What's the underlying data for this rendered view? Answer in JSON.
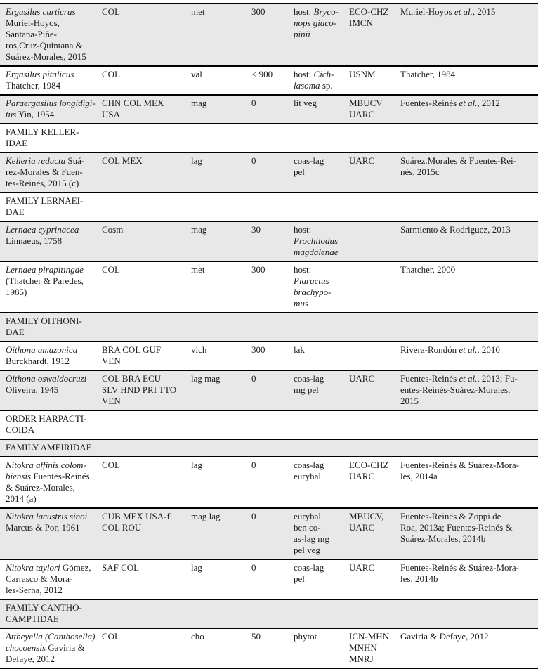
{
  "styles": {
    "shaded_row_bg": "#e8e8e8",
    "rule_color": "#000000",
    "text_color": "#1c1c1c",
    "page_bg": "#ffffff"
  },
  "table": {
    "columns": [
      {
        "key": "species-authority"
      },
      {
        "key": "distribution-countries"
      },
      {
        "key": "habitat-code"
      },
      {
        "key": "altitude"
      },
      {
        "key": "habitat-detail"
      },
      {
        "key": "repository"
      },
      {
        "key": "reference"
      }
    ],
    "rows": [
      {
        "kind": "species",
        "shaded": true,
        "cells": [
          [
            [
              "i",
              "Ergasilus curticrus"
            ],
            [
              "r",
              "\nMuriel-Hoyos,\nSantana-Piñe-\nros,Cruz-Quintana &\nSuárez-Morales, 2015"
            ]
          ],
          [
            [
              "r",
              "COL"
            ]
          ],
          [
            [
              "r",
              "met"
            ]
          ],
          [
            [
              "r",
              "300"
            ]
          ],
          [
            [
              "r",
              "host: "
            ],
            [
              "i",
              "Bryco-\nnops giaco-\npinii"
            ]
          ],
          [
            [
              "r",
              "ECO-CHZ\nIMCN"
            ]
          ],
          [
            [
              "r",
              "Muriel-Hoyos "
            ],
            [
              "i",
              "et al."
            ],
            [
              "r",
              ", 2015"
            ]
          ]
        ]
      },
      {
        "kind": "species",
        "shaded": false,
        "cells": [
          [
            [
              "i",
              "Ergasilus pitalicus"
            ],
            [
              "r",
              "\nThatcher, 1984"
            ]
          ],
          [
            [
              "r",
              "COL"
            ]
          ],
          [
            [
              "r",
              "val"
            ]
          ],
          [
            [
              "r",
              "< 900"
            ]
          ],
          [
            [
              "r",
              "host: "
            ],
            [
              "i",
              "Cich-\nlasoma"
            ],
            [
              "r",
              " sp."
            ]
          ],
          [
            [
              "r",
              "USNM"
            ]
          ],
          [
            [
              "r",
              "Thatcher, 1984"
            ]
          ]
        ]
      },
      {
        "kind": "species",
        "shaded": true,
        "cells": [
          [
            [
              "i",
              "Paraergasilus longidigi-\ntus"
            ],
            [
              "r",
              " Yin, 1954"
            ]
          ],
          [
            [
              "r",
              "CHN COL MEX\nUSA"
            ]
          ],
          [
            [
              "r",
              "mag"
            ]
          ],
          [
            [
              "r",
              "0"
            ]
          ],
          [
            [
              "r",
              "lit veg"
            ]
          ],
          [
            [
              "r",
              "MBUCV\nUARC"
            ]
          ],
          [
            [
              "r",
              "Fuentes-Reinés "
            ],
            [
              "i",
              "et al."
            ],
            [
              "r",
              ", 2012"
            ]
          ]
        ]
      },
      {
        "kind": "section",
        "shaded": false,
        "title": "FAMILY KELLER-\nIDAE"
      },
      {
        "kind": "species",
        "shaded": true,
        "cells": [
          [
            [
              "i",
              "Kelleria reducta"
            ],
            [
              "r",
              " Suá-\nrez-Morales & Fuen-\ntes-Reinés, 2015 (c)"
            ]
          ],
          [
            [
              "r",
              "COL MEX"
            ]
          ],
          [
            [
              "r",
              "lag"
            ]
          ],
          [
            [
              "r",
              "0"
            ]
          ],
          [
            [
              "r",
              "coas-lag\npel"
            ]
          ],
          [
            [
              "r",
              "UARC"
            ]
          ],
          [
            [
              "r",
              "Suárez.Morales & Fuentes-Rei-\nnés, 2015c"
            ]
          ]
        ]
      },
      {
        "kind": "section",
        "shaded": false,
        "title": "FAMILY LERNAEI-\nDAE"
      },
      {
        "kind": "species",
        "shaded": true,
        "cells": [
          [
            [
              "i",
              "Lernaea cyprinacea"
            ],
            [
              "r",
              "\nLinnaeus, 1758"
            ]
          ],
          [
            [
              "r",
              "Cosm"
            ]
          ],
          [
            [
              "r",
              "mag"
            ]
          ],
          [
            [
              "r",
              "30"
            ]
          ],
          [
            [
              "r",
              "host:\n"
            ],
            [
              "i",
              "Prochilodus\nmagdalenae"
            ]
          ],
          [],
          [
            [
              "r",
              "Sarmiento & Rodriguez, 2013"
            ]
          ]
        ]
      },
      {
        "kind": "species",
        "shaded": false,
        "cells": [
          [
            [
              "i",
              "Lernaea pirapitingae"
            ],
            [
              "r",
              "\n(Thatcher & Paredes,\n1985)"
            ]
          ],
          [
            [
              "r",
              "COL"
            ]
          ],
          [
            [
              "r",
              "met"
            ]
          ],
          [
            [
              "r",
              "300"
            ]
          ],
          [
            [
              "r",
              "host:\n"
            ],
            [
              "i",
              "Piaractus\nbrachypo-\nmus"
            ]
          ],
          [],
          [
            [
              "r",
              "Thatcher, 2000"
            ]
          ]
        ]
      },
      {
        "kind": "section",
        "shaded": true,
        "title": "FAMILY OITHONI-\nDAE"
      },
      {
        "kind": "species",
        "shaded": false,
        "cells": [
          [
            [
              "i",
              "Oithona amazonica"
            ],
            [
              "r",
              "\nBurckhardt, 1912"
            ]
          ],
          [
            [
              "r",
              "BRA COL GUF\nVEN"
            ]
          ],
          [
            [
              "r",
              "vich"
            ]
          ],
          [
            [
              "r",
              "300"
            ]
          ],
          [
            [
              "r",
              "lak"
            ]
          ],
          [],
          [
            [
              "r",
              "Rivera-Rondón "
            ],
            [
              "i",
              "et al."
            ],
            [
              "r",
              ", 2010"
            ]
          ]
        ]
      },
      {
        "kind": "species",
        "shaded": true,
        "cells": [
          [
            [
              "i",
              "Oithona oswaldocruzi"
            ],
            [
              "r",
              "\nOliveira, 1945"
            ]
          ],
          [
            [
              "r",
              "COL BRA ECU\nSLV HND PRI TTO\nVEN"
            ]
          ],
          [
            [
              "r",
              "lag mag"
            ]
          ],
          [
            [
              "r",
              "0"
            ]
          ],
          [
            [
              "r",
              "coas-lag\nmg pel"
            ]
          ],
          [
            [
              "r",
              "UARC"
            ]
          ],
          [
            [
              "r",
              "Fuentes-Reinés "
            ],
            [
              "i",
              "et al."
            ],
            [
              "r",
              ", 2013; Fu-\nentes-Reinés-Suárez-Morales,\n2015"
            ]
          ]
        ]
      },
      {
        "kind": "section",
        "shaded": false,
        "title": "ORDER HARPACTI-\nCOIDA"
      },
      {
        "kind": "section",
        "shaded": true,
        "title": "FAMILY AMEIRIDAE"
      },
      {
        "kind": "species",
        "shaded": false,
        "cells": [
          [
            [
              "i",
              "Nitokra affinis colom-\nbiensis"
            ],
            [
              "r",
              " Fuentes-Reinés\n& Suárez-Morales,\n2014 (a)"
            ]
          ],
          [
            [
              "r",
              "COL"
            ]
          ],
          [
            [
              "r",
              "lag"
            ]
          ],
          [
            [
              "r",
              "0"
            ]
          ],
          [
            [
              "r",
              "coas-lag\neuryhal"
            ]
          ],
          [
            [
              "r",
              "ECO-CHZ\nUARC"
            ]
          ],
          [
            [
              "r",
              "Fuentes-Reinés & Suárez-Mora-\nles, 2014a"
            ]
          ]
        ]
      },
      {
        "kind": "species",
        "shaded": true,
        "cells": [
          [
            [
              "i",
              "Nitokra lacustris sinoi"
            ],
            [
              "r",
              "\nMarcus & Por, 1961"
            ]
          ],
          [
            [
              "r",
              "CUB MEX USA-fl\nCOL ROU"
            ]
          ],
          [
            [
              "r",
              "mag lag"
            ]
          ],
          [
            [
              "r",
              "0"
            ]
          ],
          [
            [
              "r",
              "euryhal\nben co-\nas-lag mg\npel veg"
            ]
          ],
          [
            [
              "r",
              "MBUCV,\nUARC"
            ]
          ],
          [
            [
              "r",
              "Fuentes-Reinés & Zoppi de\nRoa, 2013a; Fuentes-Reinés &\nSuárez-Morales, 2014b"
            ]
          ]
        ]
      },
      {
        "kind": "species",
        "shaded": false,
        "cells": [
          [
            [
              "i",
              "Nitokra taylori"
            ],
            [
              "r",
              " Gómez,\nCarrasco & Mora-\nles-Serna, 2012"
            ]
          ],
          [
            [
              "r",
              "SAF COL"
            ]
          ],
          [
            [
              "r",
              "lag"
            ]
          ],
          [
            [
              "r",
              "0"
            ]
          ],
          [
            [
              "r",
              "coas-lag\npel"
            ]
          ],
          [
            [
              "r",
              "UARC"
            ]
          ],
          [
            [
              "r",
              "Fuentes-Reinés & Suárez-Mora-\nles, 2014b"
            ]
          ]
        ]
      },
      {
        "kind": "section",
        "shaded": true,
        "title": "FAMILY CANTHO-\nCAMPTIDAE"
      },
      {
        "kind": "species",
        "shaded": false,
        "cells": [
          [
            [
              "i",
              "Attheyella (Canthosella)\nchocoensis"
            ],
            [
              "r",
              " Gaviria &\nDefaye, 2012"
            ]
          ],
          [
            [
              "r",
              "COL"
            ]
          ],
          [
            [
              "r",
              "cho"
            ]
          ],
          [
            [
              "r",
              "50"
            ]
          ],
          [
            [
              "r",
              "phytot"
            ]
          ],
          [
            [
              "r",
              "ICN-MHN\nMNHN\nMNRJ"
            ]
          ],
          [
            [
              "r",
              "Gaviria & Defaye, 2012"
            ]
          ]
        ]
      }
    ]
  }
}
